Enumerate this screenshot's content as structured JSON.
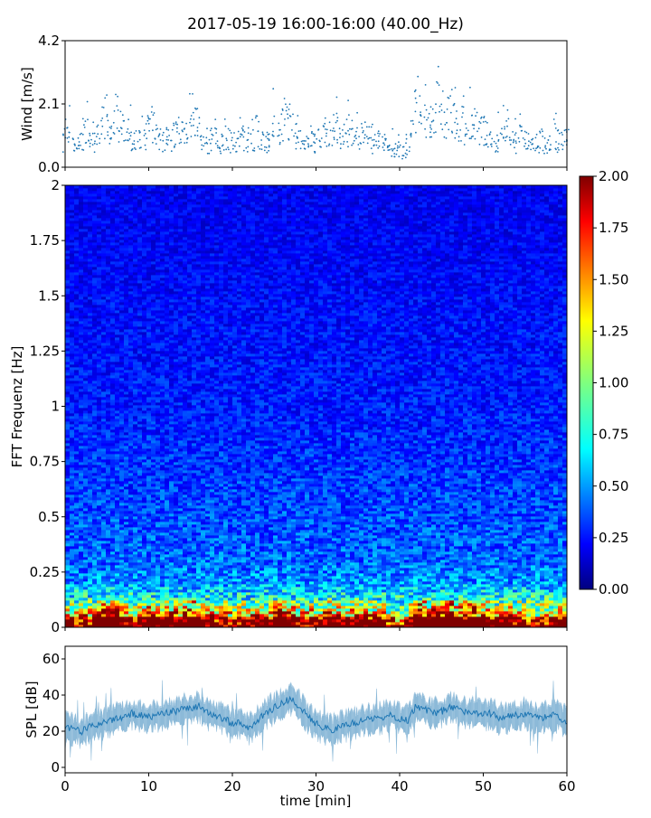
{
  "chart_data": [
    {
      "type": "scatter",
      "panel": "wind",
      "title": "2017-05-19 16:00-16:00 (40.00_Hz)",
      "ylabel": "Wind [m/s]",
      "xlim": [
        0,
        60
      ],
      "ylim": [
        0,
        4.2
      ],
      "yticks": [
        "0.0",
        "2.1",
        "4.2"
      ],
      "color": "#1f77b4",
      "x": [
        0,
        0.5,
        1,
        1.5,
        2,
        2.5,
        3,
        3.5,
        4,
        4.5,
        5,
        5.5,
        6,
        6.5,
        7,
        7.5,
        8,
        8.5,
        9,
        9.5,
        10,
        10.5,
        11,
        11.5,
        12,
        12.5,
        13,
        13.5,
        14,
        14.5,
        15,
        15.5,
        16,
        16.5,
        17,
        17.5,
        18,
        18.5,
        19,
        19.5,
        20,
        20.5,
        21,
        21.5,
        22,
        22.5,
        23,
        23.5,
        24,
        24.5,
        25,
        25.5,
        26,
        26.5,
        27,
        27.5,
        28,
        28.5,
        29,
        29.5,
        30,
        30.5,
        31,
        31.5,
        32,
        32.5,
        33,
        33.5,
        34,
        34.5,
        35,
        35.5,
        36,
        36.5,
        37,
        37.5,
        38,
        38.5,
        39,
        39.5,
        40,
        40.5,
        41,
        41.5,
        42,
        42.5,
        43,
        43.5,
        44,
        44.5,
        45,
        45.5,
        46,
        46.5,
        47,
        47.5,
        48,
        48.5,
        49,
        49.5,
        50,
        50.5,
        51,
        51.5,
        52,
        52.5,
        53,
        53.5,
        54,
        54.5,
        55,
        55.5,
        56,
        56.5,
        57,
        57.5,
        58,
        58.5,
        59,
        59.5,
        60
      ],
      "y": [
        0.9,
        1.0,
        0.8,
        0.7,
        0.9,
        1.1,
        0.8,
        0.9,
        1.2,
        1.5,
        1.3,
        1.1,
        1.6,
        1.4,
        1.2,
        0.9,
        1.0,
        0.8,
        0.9,
        1.0,
        1.3,
        1.4,
        1.1,
        0.9,
        1.0,
        0.9,
        1.1,
        1.2,
        1.3,
        1.2,
        1.8,
        1.6,
        1.2,
        0.9,
        0.8,
        1.0,
        0.9,
        0.8,
        1.0,
        0.9,
        0.8,
        0.7,
        0.9,
        1.0,
        0.8,
        0.9,
        1.2,
        1.0,
        0.8,
        0.9,
        1.2,
        1.3,
        1.5,
        1.6,
        1.4,
        1.1,
        0.9,
        0.8,
        0.9,
        1.0,
        0.8,
        0.9,
        1.0,
        1.1,
        1.2,
        1.3,
        1.0,
        1.1,
        1.2,
        1.0,
        0.9,
        1.1,
        1.2,
        1.0,
        0.8,
        0.9,
        1.0,
        0.7,
        0.6,
        0.5,
        0.6,
        0.5,
        0.6,
        1.2,
        1.8,
        2.1,
        1.5,
        1.3,
        1.6,
        2.0,
        1.8,
        1.4,
        1.9,
        1.7,
        1.3,
        1.5,
        1.2,
        1.6,
        1.4,
        1.3,
        1.2,
        1.1,
        0.9,
        0.8,
        1.0,
        1.1,
        1.3,
        0.9,
        0.8,
        1.0,
        0.9,
        0.8,
        0.7,
        0.8,
        0.9,
        0.8,
        0.9,
        1.0,
        0.9,
        1.0,
        1.1
      ]
    },
    {
      "type": "heatmap",
      "panel": "spectrogram",
      "ylabel": "FFT Frequenz [Hz]",
      "xlim": [
        0,
        60
      ],
      "ylim": [
        0,
        2
      ],
      "yticks": [
        "0",
        "0.25",
        "0.5",
        "0.75",
        "1",
        "1.25",
        "1.5",
        "1.75",
        "2"
      ],
      "colormap": "jet",
      "colorbar": {
        "range": [
          0,
          2
        ],
        "ticks": [
          "0.00",
          "0.25",
          "0.50",
          "0.75",
          "1.00",
          "1.25",
          "1.50",
          "1.75",
          "2.00"
        ]
      },
      "background_level_by_frequency": [
        {
          "f": 0.0,
          "v": 1.9
        },
        {
          "f": 0.05,
          "v": 1.3
        },
        {
          "f": 0.1,
          "v": 0.9
        },
        {
          "f": 0.2,
          "v": 0.55
        },
        {
          "f": 0.3,
          "v": 0.45
        },
        {
          "f": 0.5,
          "v": 0.4
        },
        {
          "f": 1.0,
          "v": 0.3
        },
        {
          "f": 2.0,
          "v": 0.22
        }
      ]
    },
    {
      "type": "line",
      "panel": "spl",
      "ylabel": "SPL [dB]",
      "xlabel": "time [min]",
      "xlim": [
        0,
        60
      ],
      "ylim": [
        -3,
        67
      ],
      "yticks": [
        "0",
        "20",
        "40",
        "60"
      ],
      "xticks": [
        "0",
        "10",
        "20",
        "30",
        "40",
        "50",
        "60"
      ],
      "color": "#1f77b4",
      "x": [
        0,
        1,
        2,
        3,
        4,
        5,
        6,
        7,
        8,
        9,
        10,
        11,
        12,
        13,
        14,
        15,
        16,
        17,
        18,
        19,
        20,
        21,
        22,
        23,
        24,
        25,
        26,
        27,
        28,
        29,
        30,
        31,
        32,
        33,
        34,
        35,
        36,
        37,
        38,
        39,
        40,
        41,
        42,
        43,
        44,
        45,
        46,
        47,
        48,
        49,
        50,
        51,
        52,
        53,
        54,
        55,
        56,
        57,
        58,
        59,
        60
      ],
      "y": [
        22,
        21,
        20,
        23,
        24,
        25,
        27,
        28,
        30,
        29,
        28,
        29,
        30,
        31,
        32,
        33,
        34,
        30,
        28,
        27,
        24,
        25,
        22,
        26,
        30,
        33,
        36,
        38,
        34,
        28,
        24,
        22,
        21,
        23,
        24,
        25,
        26,
        27,
        28,
        29,
        27,
        26,
        34,
        32,
        30,
        31,
        33,
        32,
        30,
        31,
        29,
        30,
        27,
        28,
        29,
        30,
        28,
        27,
        29,
        28,
        25
      ]
    }
  ]
}
